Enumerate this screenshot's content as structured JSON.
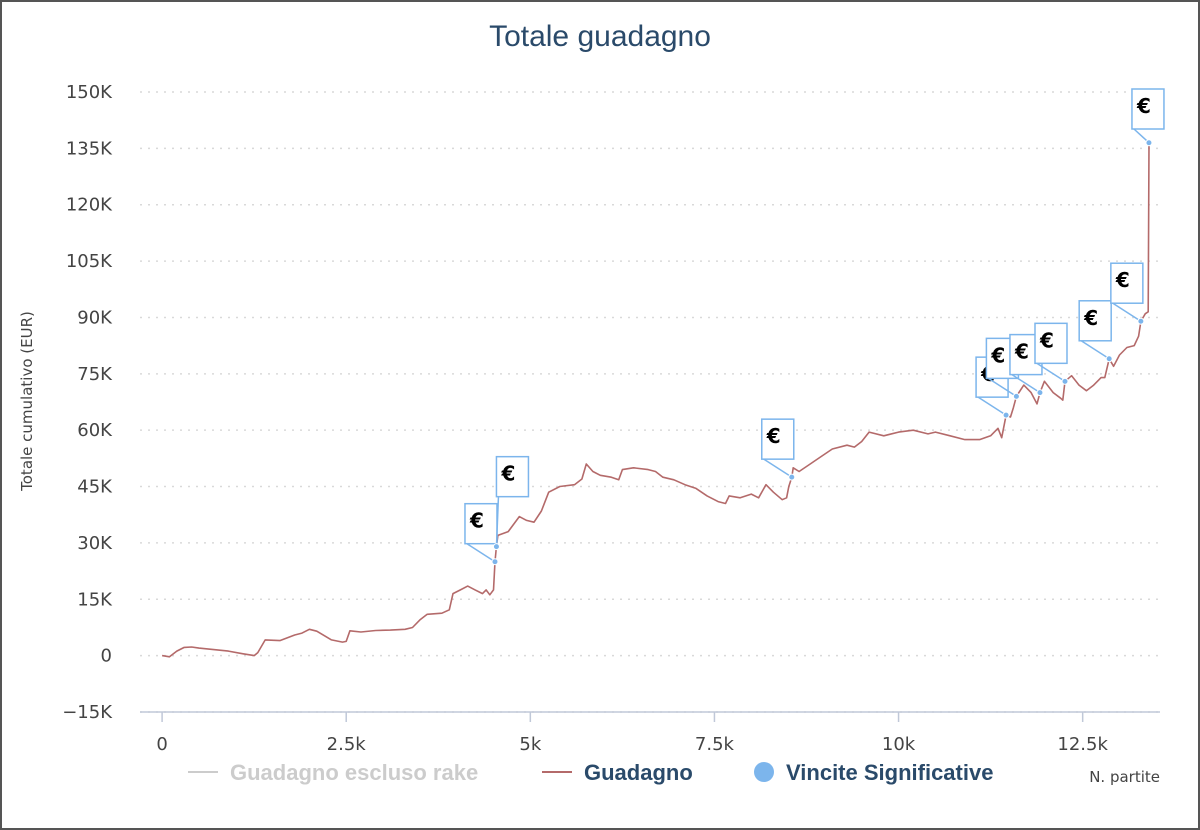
{
  "chart_data": {
    "type": "line",
    "title": "Totale guadagno",
    "xlabel": "N. partite",
    "ylabel": "Totale cumulativo (EUR)",
    "xlim": [
      -300,
      13550
    ],
    "ylim": [
      -15000,
      150000
    ],
    "x_ticks": [
      0,
      2500,
      5000,
      7500,
      10000,
      12500
    ],
    "x_tick_labels": [
      "0",
      "2.5k",
      "5k",
      "7.5k",
      "10k",
      "12.5k"
    ],
    "y_ticks": [
      -15000,
      0,
      15000,
      30000,
      45000,
      60000,
      75000,
      90000,
      105000,
      120000,
      135000,
      150000
    ],
    "y_tick_labels": [
      "−15K",
      "0",
      "15K",
      "30K",
      "45K",
      "60K",
      "75K",
      "90K",
      "105K",
      "120K",
      "135K",
      "150K"
    ],
    "grid": true,
    "legend": {
      "position": "bottom",
      "items": [
        {
          "label": "Guadagno escluso rake",
          "color": "#cccccc",
          "symbol": "line",
          "hidden": true
        },
        {
          "label": "Guadagno",
          "color": "#b46a6a",
          "symbol": "line",
          "hidden": false
        },
        {
          "label": "Vincite Significative",
          "color": "#7cb5ec",
          "symbol": "circle",
          "hidden": false
        }
      ]
    },
    "series": [
      {
        "name": "Guadagno",
        "color": "#b46a6a",
        "points": [
          [
            0,
            0
          ],
          [
            100,
            -300
          ],
          [
            200,
            1200
          ],
          [
            300,
            2200
          ],
          [
            400,
            2300
          ],
          [
            500,
            2000
          ],
          [
            700,
            1600
          ],
          [
            900,
            1200
          ],
          [
            1100,
            500
          ],
          [
            1250,
            0
          ],
          [
            1300,
            800
          ],
          [
            1400,
            4200
          ],
          [
            1600,
            4000
          ],
          [
            1800,
            5500
          ],
          [
            1900,
            6000
          ],
          [
            2000,
            7000
          ],
          [
            2100,
            6500
          ],
          [
            2300,
            4200
          ],
          [
            2450,
            3600
          ],
          [
            2500,
            3800
          ],
          [
            2550,
            6600
          ],
          [
            2700,
            6300
          ],
          [
            2900,
            6700
          ],
          [
            3100,
            6800
          ],
          [
            3300,
            7000
          ],
          [
            3400,
            7500
          ],
          [
            3500,
            9500
          ],
          [
            3600,
            11000
          ],
          [
            3800,
            11300
          ],
          [
            3900,
            12200
          ],
          [
            3950,
            16500
          ],
          [
            4050,
            17500
          ],
          [
            4150,
            18500
          ],
          [
            4250,
            17500
          ],
          [
            4350,
            16500
          ],
          [
            4400,
            17500
          ],
          [
            4450,
            16200
          ],
          [
            4500,
            17500
          ],
          [
            4520,
            25000
          ],
          [
            4540,
            29000
          ],
          [
            4560,
            32000
          ],
          [
            4700,
            33000
          ],
          [
            4850,
            37000
          ],
          [
            4950,
            36000
          ],
          [
            5050,
            35500
          ],
          [
            5150,
            38500
          ],
          [
            5250,
            43500
          ],
          [
            5400,
            45000
          ],
          [
            5600,
            45500
          ],
          [
            5700,
            47000
          ],
          [
            5760,
            51000
          ],
          [
            5850,
            49000
          ],
          [
            5950,
            48000
          ],
          [
            6100,
            47500
          ],
          [
            6200,
            46800
          ],
          [
            6250,
            49500
          ],
          [
            6400,
            50000
          ],
          [
            6600,
            49500
          ],
          [
            6700,
            49000
          ],
          [
            6800,
            47500
          ],
          [
            6950,
            46800
          ],
          [
            7100,
            45500
          ],
          [
            7250,
            44500
          ],
          [
            7400,
            42500
          ],
          [
            7550,
            41000
          ],
          [
            7650,
            40500
          ],
          [
            7700,
            42500
          ],
          [
            7850,
            42000
          ],
          [
            8000,
            43000
          ],
          [
            8100,
            42000
          ],
          [
            8200,
            45500
          ],
          [
            8300,
            43500
          ],
          [
            8420,
            41500
          ],
          [
            8480,
            42000
          ],
          [
            8510,
            45000
          ],
          [
            8550,
            47500
          ],
          [
            8570,
            50000
          ],
          [
            8650,
            49000
          ],
          [
            8800,
            51000
          ],
          [
            8950,
            53000
          ],
          [
            9100,
            55000
          ],
          [
            9300,
            56000
          ],
          [
            9400,
            55500
          ],
          [
            9500,
            57000
          ],
          [
            9600,
            59500
          ],
          [
            9800,
            58500
          ],
          [
            10000,
            59500
          ],
          [
            10200,
            60000
          ],
          [
            10400,
            59000
          ],
          [
            10500,
            59500
          ],
          [
            10700,
            58500
          ],
          [
            10900,
            57500
          ],
          [
            11100,
            57500
          ],
          [
            11250,
            58500
          ],
          [
            11350,
            60500
          ],
          [
            11400,
            58000
          ],
          [
            11460,
            64000
          ],
          [
            11520,
            63500
          ],
          [
            11560,
            66000
          ],
          [
            11600,
            69000
          ],
          [
            11700,
            72000
          ],
          [
            11800,
            70000
          ],
          [
            11880,
            67000
          ],
          [
            11920,
            70000
          ],
          [
            11980,
            73000
          ],
          [
            12100,
            70000
          ],
          [
            12200,
            68500
          ],
          [
            12230,
            68000
          ],
          [
            12260,
            73000
          ],
          [
            12350,
            74500
          ],
          [
            12450,
            72000
          ],
          [
            12550,
            70500
          ],
          [
            12650,
            72000
          ],
          [
            12750,
            74000
          ],
          [
            12800,
            74000
          ],
          [
            12860,
            79000
          ],
          [
            12920,
            77000
          ],
          [
            13000,
            80000
          ],
          [
            13100,
            82000
          ],
          [
            13200,
            82500
          ],
          [
            13260,
            85000
          ],
          [
            13290,
            89000
          ],
          [
            13350,
            91000
          ],
          [
            13390,
            91500
          ],
          [
            13400,
            136500
          ]
        ]
      }
    ],
    "significant_wins": [
      {
        "x": 4520,
        "y": 25000
      },
      {
        "x": 4540,
        "y": 29000
      },
      {
        "x": 8550,
        "y": 47500
      },
      {
        "x": 11460,
        "y": 64000
      },
      {
        "x": 11600,
        "y": 69000
      },
      {
        "x": 11920,
        "y": 70000
      },
      {
        "x": 12260,
        "y": 73000
      },
      {
        "x": 12860,
        "y": 79000
      },
      {
        "x": 13290,
        "y": 89000
      },
      {
        "x": 13400,
        "y": 136500
      }
    ],
    "flag_symbol": "€"
  }
}
